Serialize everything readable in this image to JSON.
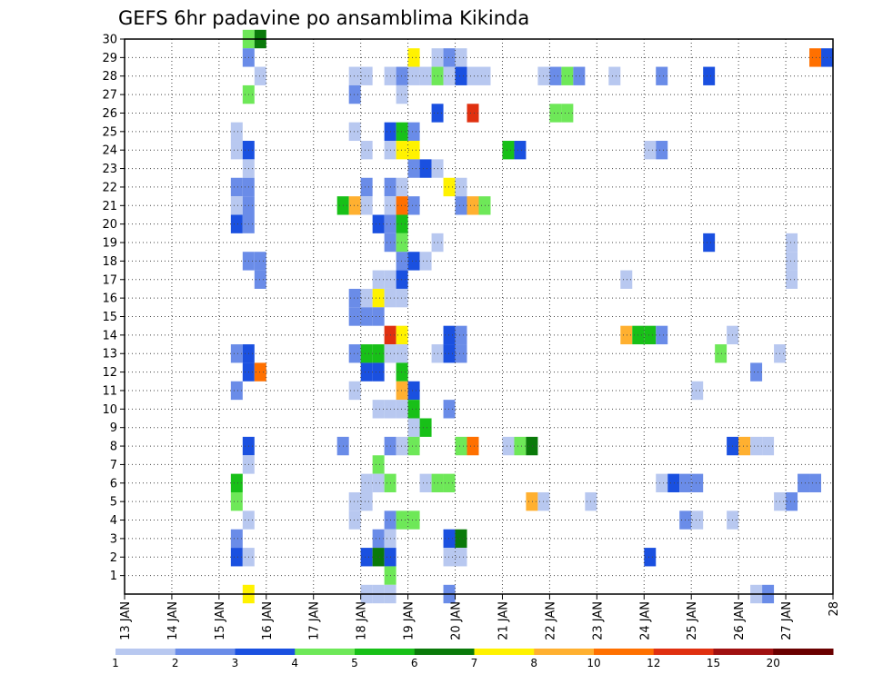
{
  "chart_data": {
    "type": "heatmap",
    "title": "GEFS 6hr padavine po ansamblima Kikinda",
    "y_ticks": [
      "1",
      "2",
      "3",
      "4",
      "5",
      "6",
      "7",
      "8",
      "9",
      "10",
      "11",
      "12",
      "13",
      "14",
      "15",
      "16",
      "17",
      "18",
      "19",
      "20",
      "21",
      "22",
      "23",
      "24",
      "25",
      "26",
      "27",
      "28",
      "29",
      "30"
    ],
    "x_ticks": [
      "13 JAN",
      "14 JAN",
      "15 JAN",
      "16 JAN",
      "17 JAN",
      "18 JAN",
      "19 JAN",
      "20 JAN",
      "21 JAN",
      "22 JAN",
      "23 JAN",
      "24 JAN",
      "25 JAN",
      "26 JAN",
      "27 JAN",
      "28"
    ],
    "x_range_days": [
      13,
      28
    ],
    "y_range": [
      0,
      30
    ],
    "step_hours": 6,
    "grid": true,
    "colorbar": {
      "labels": [
        "1",
        "2",
        "3",
        "4",
        "5",
        "6",
        "7",
        "8",
        "10",
        "12",
        "15",
        "20"
      ],
      "colors": [
        "#b8c8f0",
        "#6a8ce8",
        "#1a50e0",
        "#6ee858",
        "#18c018",
        "#0a7a0a",
        "#fff200",
        "#ffb030",
        "#ff7000",
        "#e03010",
        "#a01010",
        "#6a0000"
      ]
    },
    "cells_format": "[day, member, class]  class: 1=light blue 2=blue 3=dark blue 4=light green 5=green 6=dark green 7=yellow 8=light orange 9=orange 10=red",
    "cells": [
      [
        15.5,
        30,
        4
      ],
      [
        15.75,
        30,
        6
      ],
      [
        15.5,
        29,
        2
      ],
      [
        19.0,
        29,
        7
      ],
      [
        19.5,
        29,
        1
      ],
      [
        19.75,
        29,
        2
      ],
      [
        20.0,
        29,
        1
      ],
      [
        27.5,
        29,
        9
      ],
      [
        27.75,
        29,
        3
      ],
      [
        15.75,
        28,
        1
      ],
      [
        17.75,
        28,
        1
      ],
      [
        18.0,
        28,
        1
      ],
      [
        18.5,
        28,
        1
      ],
      [
        18.75,
        28,
        2
      ],
      [
        19.0,
        28,
        1
      ],
      [
        19.25,
        28,
        1
      ],
      [
        19.5,
        28,
        4
      ],
      [
        19.75,
        28,
        1
      ],
      [
        20.0,
        28,
        3
      ],
      [
        20.25,
        28,
        1
      ],
      [
        20.5,
        28,
        1
      ],
      [
        21.75,
        28,
        1
      ],
      [
        22.0,
        28,
        2
      ],
      [
        22.25,
        28,
        4
      ],
      [
        22.5,
        28,
        2
      ],
      [
        23.25,
        28,
        1
      ],
      [
        24.25,
        28,
        2
      ],
      [
        25.25,
        28,
        3
      ],
      [
        15.5,
        27,
        4
      ],
      [
        17.75,
        27,
        2
      ],
      [
        18.75,
        27,
        1
      ],
      [
        19.5,
        26,
        3
      ],
      [
        20.25,
        26,
        10
      ],
      [
        22.0,
        26,
        4
      ],
      [
        22.25,
        26,
        4
      ],
      [
        15.25,
        25,
        1
      ],
      [
        17.75,
        25,
        1
      ],
      [
        18.5,
        25,
        3
      ],
      [
        18.75,
        25,
        5
      ],
      [
        19.0,
        25,
        2
      ],
      [
        15.25,
        24,
        1
      ],
      [
        15.5,
        24,
        3
      ],
      [
        18.0,
        24,
        1
      ],
      [
        18.5,
        24,
        1
      ],
      [
        18.75,
        24,
        7
      ],
      [
        19.0,
        24,
        7
      ],
      [
        21.0,
        24,
        5
      ],
      [
        21.25,
        24,
        3
      ],
      [
        24.0,
        24,
        1
      ],
      [
        24.25,
        24,
        2
      ],
      [
        15.5,
        23,
        1
      ],
      [
        19.0,
        23,
        2
      ],
      [
        19.25,
        23,
        3
      ],
      [
        19.5,
        23,
        1
      ],
      [
        15.25,
        22,
        2
      ],
      [
        15.5,
        22,
        2
      ],
      [
        18.0,
        22,
        2
      ],
      [
        18.5,
        22,
        2
      ],
      [
        18.75,
        22,
        1
      ],
      [
        19.75,
        22,
        7
      ],
      [
        20.0,
        22,
        1
      ],
      [
        15.25,
        21,
        1
      ],
      [
        15.5,
        21,
        2
      ],
      [
        17.5,
        21,
        5
      ],
      [
        17.75,
        21,
        8
      ],
      [
        18.0,
        21,
        1
      ],
      [
        18.5,
        21,
        1
      ],
      [
        18.75,
        21,
        9
      ],
      [
        19.0,
        21,
        2
      ],
      [
        20.0,
        21,
        2
      ],
      [
        20.25,
        21,
        8
      ],
      [
        20.5,
        21,
        4
      ],
      [
        15.25,
        20,
        3
      ],
      [
        15.5,
        20,
        2
      ],
      [
        18.25,
        20,
        3
      ],
      [
        18.5,
        20,
        2
      ],
      [
        18.75,
        20,
        5
      ],
      [
        18.5,
        19,
        2
      ],
      [
        18.75,
        19,
        4
      ],
      [
        19.5,
        19,
        1
      ],
      [
        25.25,
        19,
        3
      ],
      [
        27.0,
        19,
        1
      ],
      [
        15.5,
        18,
        2
      ],
      [
        15.75,
        18,
        2
      ],
      [
        18.75,
        18,
        2
      ],
      [
        19.0,
        18,
        3
      ],
      [
        19.25,
        18,
        1
      ],
      [
        27.0,
        18,
        1
      ],
      [
        15.75,
        17,
        2
      ],
      [
        18.25,
        17,
        1
      ],
      [
        18.5,
        17,
        1
      ],
      [
        18.75,
        17,
        3
      ],
      [
        23.5,
        17,
        1
      ],
      [
        27.0,
        17,
        1
      ],
      [
        17.75,
        16,
        2
      ],
      [
        18.0,
        16,
        1
      ],
      [
        18.25,
        16,
        7
      ],
      [
        18.5,
        16,
        1
      ],
      [
        18.75,
        16,
        1
      ],
      [
        17.75,
        15,
        2
      ],
      [
        18.0,
        15,
        2
      ],
      [
        18.25,
        15,
        2
      ],
      [
        18.5,
        14,
        10
      ],
      [
        18.75,
        14,
        7
      ],
      [
        19.75,
        14,
        3
      ],
      [
        20.0,
        14,
        2
      ],
      [
        23.5,
        14,
        8
      ],
      [
        23.75,
        14,
        5
      ],
      [
        24.0,
        14,
        5
      ],
      [
        24.25,
        14,
        2
      ],
      [
        25.75,
        14,
        1
      ],
      [
        15.25,
        13,
        2
      ],
      [
        15.5,
        13,
        3
      ],
      [
        17.75,
        13,
        2
      ],
      [
        18.0,
        13,
        5
      ],
      [
        18.25,
        13,
        5
      ],
      [
        18.5,
        13,
        1
      ],
      [
        18.75,
        13,
        1
      ],
      [
        19.5,
        13,
        1
      ],
      [
        19.75,
        13,
        3
      ],
      [
        20.0,
        13,
        2
      ],
      [
        25.5,
        13,
        4
      ],
      [
        26.75,
        13,
        1
      ],
      [
        15.5,
        12,
        3
      ],
      [
        15.75,
        12,
        9
      ],
      [
        18.0,
        12,
        3
      ],
      [
        18.25,
        12,
        3
      ],
      [
        18.75,
        12,
        5
      ],
      [
        26.25,
        12,
        2
      ],
      [
        15.25,
        11,
        2
      ],
      [
        17.75,
        11,
        1
      ],
      [
        18.75,
        11,
        8
      ],
      [
        19.0,
        11,
        3
      ],
      [
        25.0,
        11,
        1
      ],
      [
        18.25,
        10,
        1
      ],
      [
        18.5,
        10,
        1
      ],
      [
        18.75,
        10,
        1
      ],
      [
        19.0,
        10,
        5
      ],
      [
        19.75,
        10,
        2
      ],
      [
        19.0,
        9,
        1
      ],
      [
        19.25,
        9,
        5
      ],
      [
        15.5,
        8,
        3
      ],
      [
        17.5,
        8,
        2
      ],
      [
        18.5,
        8,
        2
      ],
      [
        18.75,
        8,
        1
      ],
      [
        19.0,
        8,
        4
      ],
      [
        20.0,
        8,
        4
      ],
      [
        20.25,
        8,
        9
      ],
      [
        21.0,
        8,
        1
      ],
      [
        21.25,
        8,
        4
      ],
      [
        21.5,
        8,
        6
      ],
      [
        25.75,
        8,
        3
      ],
      [
        26.0,
        8,
        8
      ],
      [
        26.25,
        8,
        1
      ],
      [
        26.5,
        8,
        1
      ],
      [
        15.5,
        7,
        1
      ],
      [
        18.25,
        7,
        4
      ],
      [
        15.25,
        6,
        5
      ],
      [
        18.0,
        6,
        1
      ],
      [
        18.25,
        6,
        1
      ],
      [
        18.5,
        6,
        4
      ],
      [
        19.25,
        6,
        1
      ],
      [
        19.5,
        6,
        4
      ],
      [
        19.75,
        6,
        4
      ],
      [
        24.25,
        6,
        1
      ],
      [
        24.5,
        6,
        3
      ],
      [
        24.75,
        6,
        2
      ],
      [
        25.0,
        6,
        2
      ],
      [
        27.25,
        6,
        2
      ],
      [
        27.5,
        6,
        2
      ],
      [
        15.25,
        5,
        4
      ],
      [
        17.75,
        5,
        1
      ],
      [
        18.0,
        5,
        1
      ],
      [
        21.5,
        5,
        8
      ],
      [
        21.75,
        5,
        1
      ],
      [
        22.75,
        5,
        1
      ],
      [
        26.75,
        5,
        1
      ],
      [
        27.0,
        5,
        2
      ],
      [
        15.5,
        4,
        1
      ],
      [
        17.75,
        4,
        1
      ],
      [
        18.5,
        4,
        2
      ],
      [
        18.75,
        4,
        4
      ],
      [
        19.0,
        4,
        4
      ],
      [
        24.75,
        4,
        2
      ],
      [
        25.0,
        4,
        1
      ],
      [
        25.75,
        4,
        1
      ],
      [
        15.25,
        3,
        2
      ],
      [
        18.25,
        3,
        2
      ],
      [
        18.5,
        3,
        1
      ],
      [
        19.75,
        3,
        3
      ],
      [
        20.0,
        3,
        6
      ],
      [
        15.25,
        2,
        3
      ],
      [
        15.5,
        2,
        1
      ],
      [
        18.0,
        2,
        3
      ],
      [
        18.25,
        2,
        6
      ],
      [
        18.5,
        2,
        3
      ],
      [
        19.75,
        2,
        1
      ],
      [
        20.0,
        2,
        1
      ],
      [
        24.0,
        2,
        3
      ],
      [
        18.5,
        1,
        4
      ],
      [
        15.5,
        0,
        7
      ],
      [
        18.0,
        0,
        1
      ],
      [
        18.25,
        0,
        1
      ],
      [
        18.5,
        0,
        1
      ],
      [
        19.75,
        0,
        2
      ],
      [
        26.25,
        0,
        1
      ],
      [
        26.5,
        0,
        2
      ]
    ],
    "class_colors": {
      "1": "#b8c8f0",
      "2": "#6a8ce8",
      "3": "#1a50e0",
      "4": "#6ee858",
      "5": "#18c018",
      "6": "#0a7a0a",
      "7": "#fff200",
      "8": "#ffb030",
      "9": "#ff7000",
      "10": "#e03010"
    }
  }
}
